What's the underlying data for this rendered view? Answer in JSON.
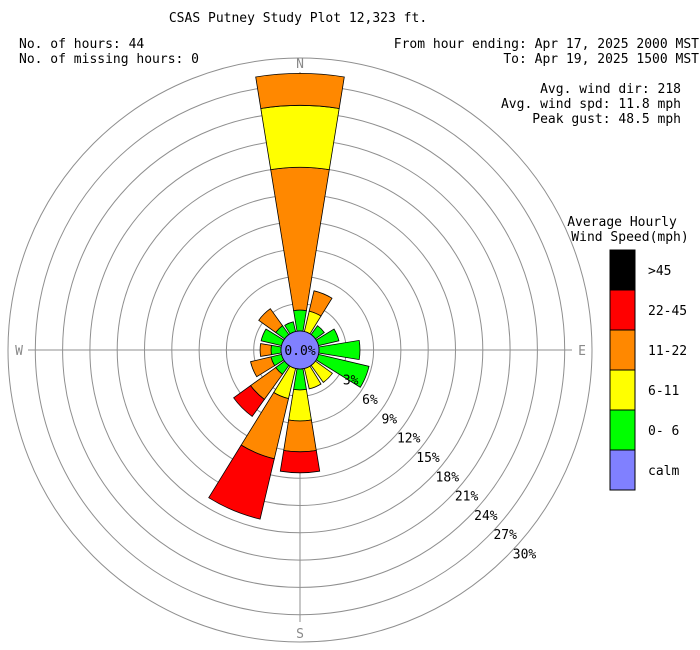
{
  "title": "CSAS Putney Study Plot 12,323 ft.",
  "info_left": {
    "hours": "No. of hours: 44",
    "missing": "No. of missing hours: 0"
  },
  "info_right": {
    "from": "From hour ending: Apr 17, 2025 2000 MST",
    "to": "To: Apr 19, 2025 1500 MST"
  },
  "stats": {
    "dir": "Avg. wind dir: 218",
    "spd": "Avg. wind spd: 11.8 mph",
    "gust": "Peak gust: 48.5 mph"
  },
  "directions": {
    "n": "N",
    "e": "E",
    "s": "S",
    "w": "W"
  },
  "calm_label": "0.0%",
  "legend": {
    "title1": "Average Hourly",
    "title2": "Wind Speed(mph)",
    "items": [
      {
        "label": ">45",
        "color": "#000000"
      },
      {
        "label": "22-45",
        "color": "#ff0000"
      },
      {
        "label": "11-22",
        "color": "#ff8800"
      },
      {
        "label": "6-11",
        "color": "#ffff00"
      },
      {
        "label": "0- 6",
        "color": "#00ff00"
      },
      {
        "label": "calm",
        "color": "#8080ff"
      }
    ]
  },
  "chart_data": {
    "type": "windrose",
    "ring_labels": [
      "3%",
      "6%",
      "9%",
      "12%",
      "15%",
      "18%",
      "21%",
      "24%",
      "27%",
      "30%"
    ],
    "rmax_percent": 30,
    "bins": [
      "0- 6",
      "6-11",
      "11-22",
      "22-45",
      ">45"
    ],
    "calm_percent": 0.0,
    "petals": [
      {
        "dir": 0,
        "values": [
          2.3,
          0,
          0,
          0,
          0
        ]
      },
      {
        "dir": 0,
        "values": [
          0,
          0,
          15.7,
          0,
          0
        ]
      },
      {
        "dir": 0,
        "values": [
          0,
          6.8,
          0,
          0,
          0
        ]
      },
      {
        "dir": 0,
        "values": [
          0,
          0,
          3.5,
          0,
          0
        ]
      },
      {
        "dir": 22.5,
        "values": [
          0,
          2.3,
          2.3,
          0,
          0
        ]
      },
      {
        "dir": 45,
        "values": [
          1.2,
          0,
          0,
          0,
          0
        ]
      },
      {
        "dir": 67.5,
        "values": [
          2.3,
          0,
          0,
          0,
          0
        ]
      },
      {
        "dir": 90,
        "values": [
          4.5,
          0,
          0,
          0,
          0
        ]
      },
      {
        "dir": 112.5,
        "values": [
          5.7,
          0,
          0,
          0,
          0
        ]
      },
      {
        "dir": 135,
        "values": [
          0,
          2.3,
          0,
          0,
          0
        ]
      },
      {
        "dir": 157.5,
        "values": [
          0,
          2.3,
          0,
          0,
          0
        ]
      },
      {
        "dir": 180,
        "values": [
          2.3,
          3.4,
          3.4,
          2.3,
          0
        ]
      },
      {
        "dir": 202.5,
        "values": [
          0,
          3.4,
          6.8,
          6.8,
          0
        ]
      },
      {
        "dir": 225,
        "values": [
          1.2,
          0,
          3.4,
          0,
          0
        ]
      },
      {
        "dir": 225,
        "values": [
          0,
          0,
          0,
          2.3,
          0
        ]
      },
      {
        "dir": 247.5,
        "values": [
          1.2,
          0,
          2.3,
          0,
          0
        ]
      },
      {
        "dir": 270,
        "values": [
          1.1,
          0,
          1.2,
          0,
          0
        ]
      },
      {
        "dir": 292.5,
        "values": [
          2.3,
          0,
          0,
          0,
          0
        ]
      },
      {
        "dir": 315,
        "values": [
          1.2,
          0,
          2.3,
          0,
          0
        ]
      },
      {
        "dir": 337.5,
        "values": [
          1.1,
          0,
          0,
          0,
          0
        ]
      }
    ]
  }
}
